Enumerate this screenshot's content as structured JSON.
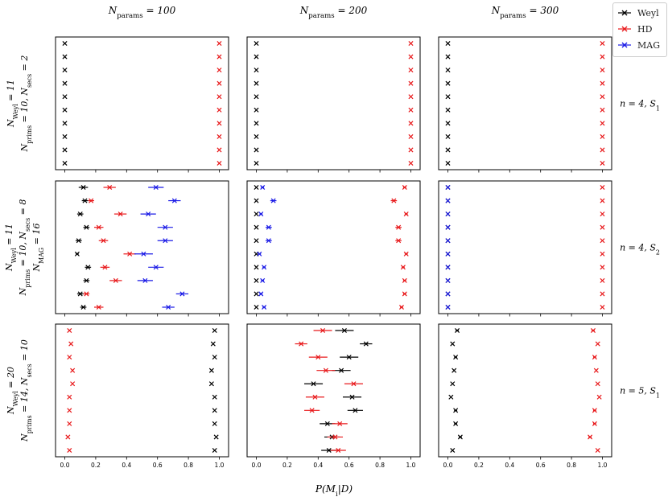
{
  "figure": {
    "xlabel": "P(M_i|D)",
    "column_titles": [
      "N_params = 100",
      "N_params = 200",
      "N_params = 300"
    ],
    "row_labels_left": [
      [
        "N_Weyl = 11",
        "N_prims = 10, N_secs = 2"
      ],
      [
        "N_Weyl = 11",
        "N_prims = 10, N_secs = 8",
        "N_MAG = 16"
      ],
      [
        "N_Weyl = 20",
        "N_prims = 14, N_secs = 10"
      ]
    ],
    "row_labels_right": [
      "n = 4, S_1",
      "n = 4, S_2",
      "n = 5, S_1"
    ],
    "xticks": [
      0.0,
      0.2,
      0.4,
      0.6,
      0.8,
      1.0
    ],
    "xtick_labels": [
      "0.0",
      "0.2",
      "0.4",
      "0.6",
      "0.8",
      "1.0"
    ]
  },
  "legend": [
    {
      "name": "Weyl",
      "color": "#000000"
    },
    {
      "name": "HD",
      "color": "#e8191b"
    },
    {
      "name": "MAG",
      "color": "#1a1ae6"
    }
  ],
  "chart_data": {
    "type": "scatter",
    "xlim": [
      -0.06,
      1.06
    ],
    "n_points": 10,
    "series_colors": {
      "Weyl": "#000000",
      "HD": "#e8191b",
      "MAG": "#1a1ae6"
    },
    "panels": [
      {
        "row": 0,
        "col": 0,
        "series": [
          {
            "name": "Weyl",
            "values": [
              0.0,
              0.0,
              0.0,
              0.0,
              0.0,
              0.0,
              0.0,
              0.0,
              0.0,
              0.0
            ],
            "errors": [
              0,
              0,
              0,
              0,
              0,
              0,
              0,
              0,
              0,
              0
            ]
          },
          {
            "name": "HD",
            "values": [
              1.0,
              1.0,
              1.0,
              1.0,
              1.0,
              1.0,
              1.0,
              1.0,
              1.0,
              1.0
            ],
            "errors": [
              0,
              0,
              0,
              0,
              0,
              0,
              0,
              0,
              0,
              0
            ]
          }
        ]
      },
      {
        "row": 0,
        "col": 1,
        "series": [
          {
            "name": "Weyl",
            "values": [
              0.0,
              0.0,
              0.0,
              0.0,
              0.0,
              0.0,
              0.0,
              0.0,
              0.0,
              0.0
            ],
            "errors": [
              0,
              0,
              0,
              0,
              0,
              0,
              0,
              0,
              0,
              0
            ]
          },
          {
            "name": "HD",
            "values": [
              1.0,
              1.0,
              1.0,
              1.0,
              1.0,
              1.0,
              1.0,
              1.0,
              1.0,
              1.0
            ],
            "errors": [
              0,
              0,
              0,
              0,
              0,
              0,
              0,
              0,
              0,
              0
            ]
          }
        ]
      },
      {
        "row": 0,
        "col": 2,
        "series": [
          {
            "name": "Weyl",
            "values": [
              0.0,
              0.0,
              0.0,
              0.0,
              0.0,
              0.0,
              0.0,
              0.0,
              0.0,
              0.0
            ],
            "errors": [
              0,
              0,
              0,
              0,
              0,
              0,
              0,
              0,
              0,
              0
            ]
          },
          {
            "name": "HD",
            "values": [
              1.0,
              1.0,
              1.0,
              1.0,
              1.0,
              1.0,
              1.0,
              1.0,
              1.0,
              1.0
            ],
            "errors": [
              0,
              0,
              0,
              0,
              0,
              0,
              0,
              0,
              0,
              0
            ]
          }
        ]
      },
      {
        "row": 1,
        "col": 0,
        "series": [
          {
            "name": "Weyl",
            "values": [
              0.12,
              0.13,
              0.1,
              0.14,
              0.09,
              0.08,
              0.15,
              0.14,
              0.1,
              0.12
            ],
            "errors": [
              0.03,
              0.02,
              0.02,
              0.02,
              0.02,
              0.01,
              0.02,
              0.02,
              0.02,
              0.02
            ]
          },
          {
            "name": "HD",
            "values": [
              0.29,
              0.17,
              0.36,
              0.22,
              0.25,
              0.42,
              0.26,
              0.33,
              0.14,
              0.22
            ],
            "errors": [
              0.04,
              0.02,
              0.04,
              0.03,
              0.03,
              0.04,
              0.03,
              0.04,
              0.02,
              0.03
            ]
          },
          {
            "name": "MAG",
            "values": [
              0.59,
              0.71,
              0.54,
              0.65,
              0.65,
              0.51,
              0.59,
              0.52,
              0.76,
              0.67
            ],
            "errors": [
              0.05,
              0.04,
              0.05,
              0.05,
              0.05,
              0.06,
              0.05,
              0.05,
              0.04,
              0.04
            ]
          }
        ]
      },
      {
        "row": 1,
        "col": 1,
        "series": [
          {
            "name": "Weyl",
            "values": [
              0.0,
              0.0,
              0.0,
              0.0,
              0.0,
              0.0,
              0.0,
              0.0,
              0.0,
              0.0
            ],
            "errors": [
              0,
              0,
              0,
              0,
              0,
              0,
              0,
              0,
              0,
              0
            ]
          },
          {
            "name": "HD",
            "values": [
              0.96,
              0.89,
              0.97,
              0.92,
              0.92,
              0.97,
              0.95,
              0.96,
              0.96,
              0.94
            ],
            "errors": [
              0.01,
              0.02,
              0.01,
              0.02,
              0.02,
              0.01,
              0.01,
              0.01,
              0.01,
              0.01
            ]
          },
          {
            "name": "MAG",
            "values": [
              0.04,
              0.11,
              0.03,
              0.08,
              0.08,
              0.02,
              0.05,
              0.04,
              0.03,
              0.05
            ],
            "errors": [
              0.01,
              0.02,
              0.01,
              0.02,
              0.02,
              0.01,
              0.01,
              0.01,
              0.01,
              0.01
            ]
          }
        ]
      },
      {
        "row": 1,
        "col": 2,
        "series": [
          {
            "name": "Weyl",
            "values": [
              0.0,
              0.0,
              0.0,
              0.0,
              0.0,
              0.0,
              0.0,
              0.0,
              0.0,
              0.0
            ],
            "errors": [
              0,
              0,
              0,
              0,
              0,
              0,
              0,
              0,
              0,
              0
            ]
          },
          {
            "name": "HD",
            "values": [
              1.0,
              1.0,
              1.0,
              1.0,
              1.0,
              1.0,
              1.0,
              1.0,
              1.0,
              1.0
            ],
            "errors": [
              0,
              0,
              0,
              0,
              0,
              0,
              0,
              0,
              0,
              0
            ]
          },
          {
            "name": "MAG",
            "values": [
              0.0,
              0.0,
              0.0,
              0.0,
              0.0,
              0.0,
              0.0,
              0.0,
              0.0,
              0.0
            ],
            "errors": [
              0,
              0,
              0,
              0,
              0,
              0,
              0,
              0,
              0,
              0
            ]
          }
        ]
      },
      {
        "row": 2,
        "col": 0,
        "series": [
          {
            "name": "Weyl",
            "values": [
              0.97,
              0.96,
              0.97,
              0.95,
              0.95,
              0.97,
              0.97,
              0.97,
              0.98,
              0.97
            ],
            "errors": [
              0,
              0,
              0,
              0,
              0,
              0,
              0,
              0,
              0,
              0
            ]
          },
          {
            "name": "HD",
            "values": [
              0.03,
              0.04,
              0.03,
              0.05,
              0.05,
              0.03,
              0.03,
              0.03,
              0.02,
              0.03
            ],
            "errors": [
              0,
              0,
              0,
              0,
              0,
              0,
              0,
              0,
              0,
              0
            ]
          }
        ]
      },
      {
        "row": 2,
        "col": 1,
        "series": [
          {
            "name": "Weyl",
            "values": [
              0.57,
              0.71,
              0.6,
              0.55,
              0.37,
              0.62,
              0.64,
              0.46,
              0.49,
              0.47
            ],
            "errors": [
              0.06,
              0.04,
              0.06,
              0.06,
              0.06,
              0.06,
              0.05,
              0.05,
              0.05,
              0.05
            ]
          },
          {
            "name": "HD",
            "values": [
              0.43,
              0.29,
              0.4,
              0.45,
              0.63,
              0.38,
              0.36,
              0.54,
              0.51,
              0.53
            ],
            "errors": [
              0.06,
              0.04,
              0.06,
              0.06,
              0.06,
              0.06,
              0.05,
              0.05,
              0.05,
              0.05
            ]
          }
        ]
      },
      {
        "row": 2,
        "col": 2,
        "series": [
          {
            "name": "Weyl",
            "values": [
              0.06,
              0.03,
              0.05,
              0.04,
              0.03,
              0.02,
              0.05,
              0.05,
              0.08,
              0.03
            ],
            "errors": [
              0.01,
              0.0,
              0.01,
              0.0,
              0.0,
              0.0,
              0.01,
              0.01,
              0.01,
              0.0
            ]
          },
          {
            "name": "HD",
            "values": [
              0.94,
              0.97,
              0.95,
              0.96,
              0.97,
              0.98,
              0.95,
              0.95,
              0.92,
              0.97
            ],
            "errors": [
              0.01,
              0.0,
              0.01,
              0.0,
              0.0,
              0.0,
              0.01,
              0.01,
              0.01,
              0.0
            ]
          }
        ]
      }
    ]
  }
}
